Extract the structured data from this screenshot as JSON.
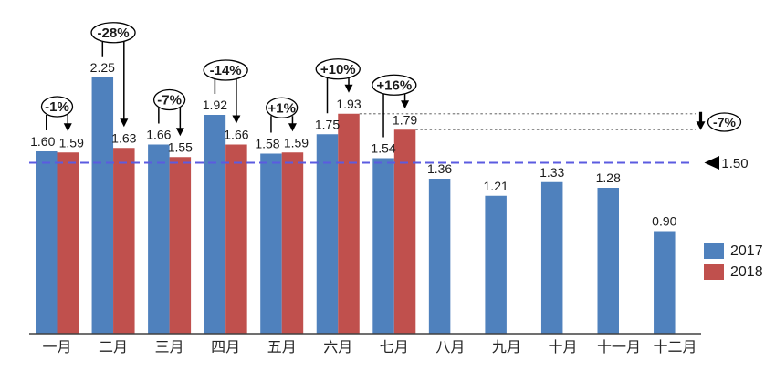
{
  "chart_data": {
    "type": "bar",
    "title": "",
    "categories": [
      "一月",
      "二月",
      "三月",
      "四月",
      "五月",
      "六月",
      "七月",
      "八月",
      "九月",
      "十月",
      "十一月",
      "十二月"
    ],
    "series": [
      {
        "name": "2017",
        "color": "#4F81BD",
        "values": [
          1.6,
          2.25,
          1.66,
          1.92,
          1.58,
          1.75,
          1.54,
          1.36,
          1.21,
          1.33,
          1.28,
          0.9
        ]
      },
      {
        "name": "2018",
        "color": "#C0504D",
        "values": [
          1.59,
          1.63,
          1.55,
          1.66,
          1.59,
          1.93,
          1.79,
          null,
          null,
          null,
          null,
          null
        ]
      }
    ],
    "value_label_decimals": 2,
    "ylim": [
      0,
      2.4
    ],
    "grid": false,
    "legend_position": "right",
    "legend": [
      "2017",
      "2018"
    ],
    "reference_line": {
      "value": 1.5,
      "label": "1.50",
      "color": "#5B5BE0",
      "style": "dashed",
      "marker": "left-triangle"
    },
    "change_bubbles": [
      {
        "month_index": 0,
        "label": "-1%"
      },
      {
        "month_index": 1,
        "label": "-28%"
      },
      {
        "month_index": 2,
        "label": "-7%"
      },
      {
        "month_index": 3,
        "label": "-14%"
      },
      {
        "month_index": 4,
        "label": "+1%"
      },
      {
        "month_index": 5,
        "label": "+10%"
      },
      {
        "month_index": 6,
        "label": "+16%"
      }
    ],
    "right_comparison": {
      "label": "-7%",
      "from_month_index": 5,
      "from_value": 1.93,
      "to_month_index": 6,
      "to_value": 1.79,
      "line_style": "dotted"
    },
    "colors": {
      "axis": "#404040",
      "text": "#1a1a1a",
      "guide": "#808080",
      "annotation": "#000000",
      "bubble_fill": "#ffffff"
    }
  }
}
